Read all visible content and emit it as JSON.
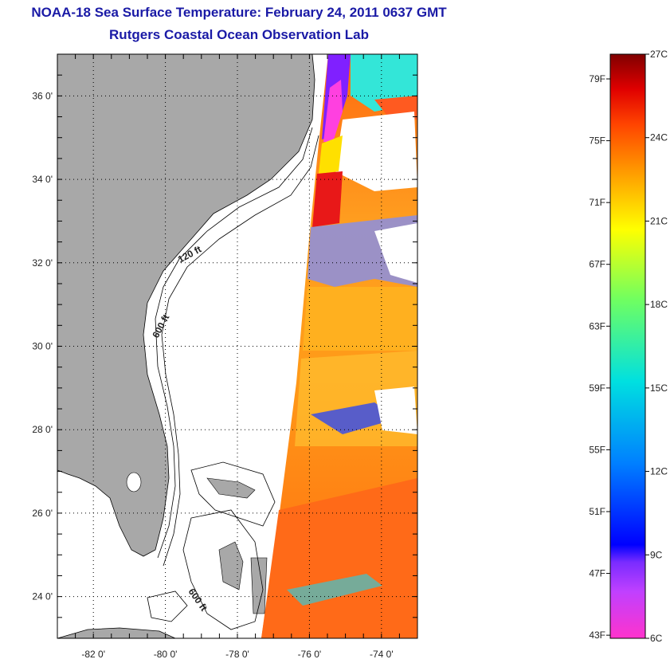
{
  "header": {
    "title": "NOAA-18 Sea Surface Temperature:  February 24, 2011 0637 GMT",
    "subtitle": "Rutgers Coastal Ocean Observation Lab"
  },
  "map": {
    "lon_range": [
      -83,
      -73
    ],
    "lat_range": [
      23,
      37
    ],
    "lon_ticks": [
      {
        "value": -82,
        "label": "-82 0'"
      },
      {
        "value": -80,
        "label": "-80 0'"
      },
      {
        "value": -78,
        "label": "-78 0'"
      },
      {
        "value": -76,
        "label": "-76 0'"
      },
      {
        "value": -74,
        "label": "-74 0'"
      }
    ],
    "lat_ticks": [
      {
        "value": 36,
        "label": "36 0'"
      },
      {
        "value": 34,
        "label": "34 0'"
      },
      {
        "value": 32,
        "label": "32 0'"
      },
      {
        "value": 30,
        "label": "30 0'"
      },
      {
        "value": 28,
        "label": "28 0'"
      },
      {
        "value": 26,
        "label": "26 0'"
      },
      {
        "value": 24,
        "label": "24 0'"
      }
    ],
    "grid": "dotted",
    "depth_labels": [
      "120 ft",
      "600 ft",
      "600 ft"
    ],
    "colors": {
      "land": "#a8a8a8",
      "ocean_nodata": "#ffffff",
      "coastline": "#000000"
    }
  },
  "colorbar": {
    "fahrenheit_labels": [
      "79F",
      "75F",
      "71F",
      "67F",
      "63F",
      "59F",
      "55F",
      "51F",
      "47F",
      "43F"
    ],
    "celsius_labels": [
      "27C",
      "24C",
      "21C",
      "18C",
      "15C",
      "12C",
      "9C",
      "6C"
    ],
    "celsius_range": [
      6,
      27
    ]
  }
}
